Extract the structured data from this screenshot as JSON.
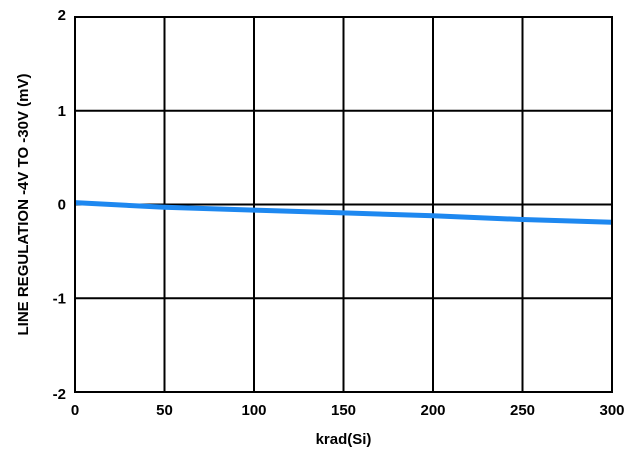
{
  "chart_data": {
    "type": "line",
    "title": "",
    "xlabel": "krad(Si)",
    "ylabel": "LINE REGULATION -4V TO -30V (mV)",
    "xlim": [
      0,
      300
    ],
    "ylim": [
      -2,
      2
    ],
    "x_ticks": [
      0,
      50,
      100,
      150,
      200,
      250,
      300
    ],
    "y_ticks": [
      2,
      1,
      0,
      -1,
      -2
    ],
    "x_tick_labels": [
      "0",
      "50",
      "100",
      "150",
      "200",
      "250",
      "300"
    ],
    "y_tick_labels": [
      "2",
      "1",
      "0",
      "-1",
      "-2"
    ],
    "grid": true,
    "legend": "none",
    "series": [
      {
        "color": "#1e88f0",
        "x": [
          0,
          50,
          100,
          150,
          200,
          250,
          300
        ],
        "y": [
          0.02,
          -0.03,
          -0.06,
          -0.09,
          -0.12,
          -0.16,
          -0.19
        ]
      }
    ]
  }
}
